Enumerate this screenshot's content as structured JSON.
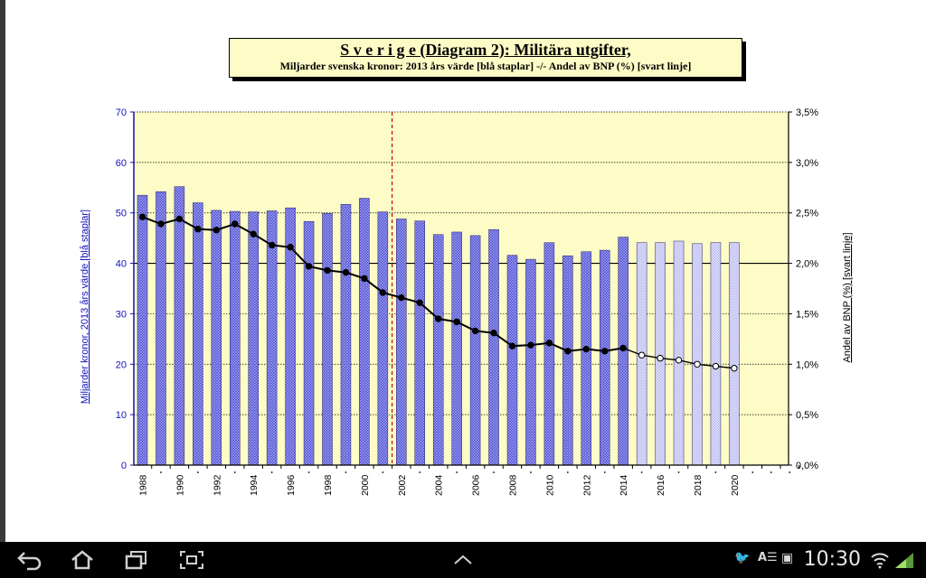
{
  "chart_data": {
    "type": "bar",
    "title": "S v e r i g e  (Diagram 2): Militära utgifter,",
    "subtitle": "Miljarder svenska kronor: 2013 års värde [blå staplar] -/-  Andel av BNP (%) [svart linje]",
    "ylabel": "Miljarder kronor, 2013 års värde [blå staplar]",
    "y2label": "Andel av BNP (%) [svart linje]",
    "ylim": [
      0,
      70
    ],
    "y2lim": [
      0,
      3.5
    ],
    "yticks": [
      "0",
      "10",
      "20",
      "30",
      "40",
      "50",
      "60",
      "70"
    ],
    "y2ticks": [
      "0,0%",
      "0,5%",
      "1,0%",
      "1,5%",
      "2,0%",
      "2,5%",
      "3,0%",
      "3,5%"
    ],
    "xtick_labels": [
      "1988",
      "1990",
      "1992",
      "1994",
      "1996",
      "1998",
      "2000",
      "2002",
      "2004",
      "2006",
      "2008",
      "2010",
      "2012",
      "2014",
      "2016",
      "2018",
      "2020"
    ],
    "x": [
      1988,
      1989,
      1990,
      1991,
      1992,
      1993,
      1994,
      1995,
      1996,
      1997,
      1998,
      1999,
      2000,
      2001,
      2002,
      2003,
      2004,
      2005,
      2006,
      2007,
      2008,
      2009,
      2010,
      2011,
      2012,
      2013,
      2014,
      2015,
      2016,
      2017,
      2018,
      2019,
      2020
    ],
    "series": [
      {
        "values": [
          53.5,
          54.2,
          55.2,
          52.0,
          50.5,
          50.3,
          50.2,
          50.4,
          51.0,
          48.3,
          49.9,
          51.7,
          52.9,
          50.2,
          48.8,
          48.4,
          45.7,
          46.2,
          45.5,
          46.7,
          41.6,
          40.8,
          44.1,
          41.5,
          42.3,
          42.6,
          45.2,
          44.1,
          44.1,
          44.4,
          43.9,
          44.1,
          44.1
        ],
        "projected_from": 2015
      },
      {
        "values": [
          2.46,
          2.39,
          2.44,
          2.34,
          2.33,
          2.39,
          2.29,
          2.18,
          2.16,
          1.97,
          1.93,
          1.91,
          1.85,
          1.71,
          1.66,
          1.61,
          1.45,
          1.42,
          1.33,
          1.31,
          1.18,
          1.19,
          1.21,
          1.13,
          1.15,
          1.13,
          1.16,
          1.09,
          1.06,
          1.04,
          1.0,
          0.98,
          0.96
        ],
        "projected_from": 2015
      }
    ],
    "hline_y2": 2.0,
    "vline_x": 2001.5,
    "extra_ticks_x": [
      2021,
      2022,
      2023
    ],
    "grid": true,
    "colors": {
      "bars": "#4a4ad6",
      "bars_projected": "#b7b7f0",
      "line": "#000000",
      "plot_bg": "#fdfcc6",
      "left_axis": "#1111bb",
      "vline": "#cc0000"
    }
  },
  "nav": {
    "back_icon": "back-arrow-icon",
    "home_icon": "home-icon",
    "recents_icon": "recent-apps-icon",
    "screenshot_icon": "screenshot-icon",
    "up_icon": "chevron-up-icon",
    "time": "10:30",
    "status_icons": [
      "twitter-icon",
      "ai-icon",
      "bag-icon",
      "wifi-icon",
      "signal-icon"
    ]
  }
}
